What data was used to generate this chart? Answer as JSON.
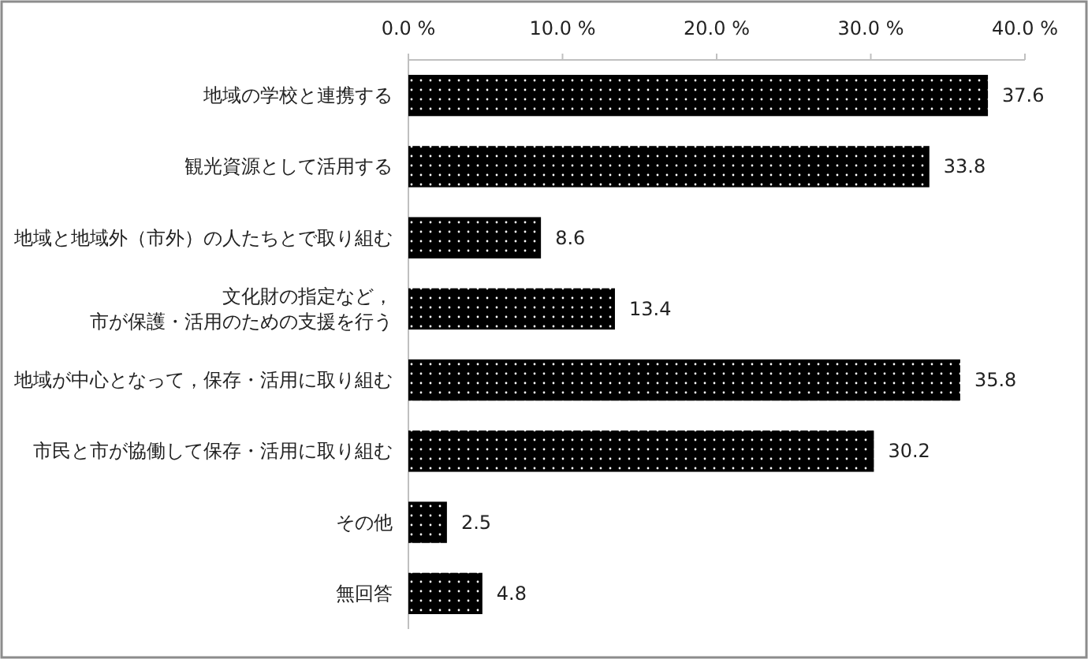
{
  "chart_data": {
    "type": "bar",
    "orientation": "horizontal",
    "categories": [
      "地域の学校と連携する",
      "観光資源として活用する",
      "地域と地域外（市外）の人たちとで取り組む",
      "文化財の指定など，市が保護・活用のための支援を行う",
      "地域が中心となって，保存・活用に取り組む",
      "市民と市が協働して保存・活用に取り組む",
      "その他",
      "無回答"
    ],
    "values": [
      37.6,
      33.8,
      8.6,
      13.4,
      35.8,
      30.2,
      2.5,
      4.8
    ],
    "color": "#000000",
    "xlim": [
      0,
      40
    ],
    "xticks": [
      {
        "value": 0,
        "label": "0.0 %"
      },
      {
        "value": 10,
        "label": "10.0 %"
      },
      {
        "value": 20,
        "label": "20.0 %"
      },
      {
        "value": 30,
        "label": "30.0 %"
      },
      {
        "value": 40,
        "label": "40.0 %"
      }
    ],
    "data_labels": true,
    "grid": false
  }
}
